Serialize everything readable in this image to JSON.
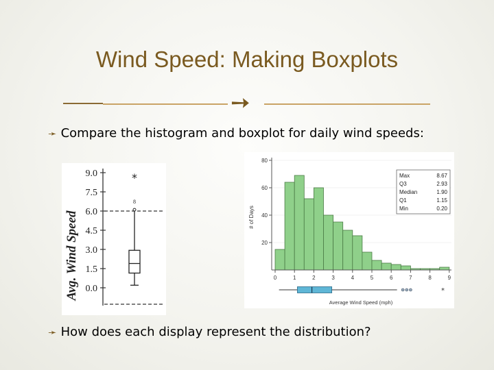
{
  "slide": {
    "title": "Wind Speed: Making Boxplots",
    "divider_icon": "bullet-arrow-icon",
    "bullets": [
      "Compare the histogram and boxplot for daily wind speeds:",
      "How does each display represent the distribution?"
    ],
    "colors": {
      "title": "#7a5a20",
      "accent_line": "#c9a365",
      "bar_fill": "#8fd08a",
      "box_fill": "#5fb6d6"
    }
  },
  "handdrawn_boxplot": {
    "ylabel": "Avg. Wind Speed",
    "ticks": [
      "9.0",
      "7.5",
      "6.0",
      "4.5",
      "3.0",
      "1.5",
      "0.0"
    ],
    "outlier_label": "8",
    "five_number": {
      "min": 0.2,
      "q1": 1.15,
      "median": 1.9,
      "q3": 2.93,
      "max": 8.67
    }
  },
  "chart_data": {
    "type": "bar",
    "title": "",
    "xlabel": "Average Wind Speed (mph)",
    "ylabel": "# of Days",
    "x_ticks": [
      "0",
      "1",
      "2",
      "3",
      "4",
      "5",
      "6",
      "7",
      "8",
      "9"
    ],
    "y_ticks": [
      "20",
      "40",
      "60",
      "80"
    ],
    "ylim": [
      0,
      80
    ],
    "xlim": [
      0,
      9
    ],
    "bin_width": 0.5,
    "bin_starts": [
      0,
      0.5,
      1,
      1.5,
      2,
      2.5,
      3,
      3.5,
      4,
      4.5,
      5,
      5.5,
      6,
      6.5,
      7,
      7.5,
      8,
      8.5
    ],
    "values": [
      15,
      64,
      69,
      52,
      60,
      40,
      35,
      29,
      25,
      13,
      7,
      5,
      4,
      3,
      1,
      1,
      1,
      2
    ],
    "summary_table": [
      {
        "label": "Max",
        "value": "8.67"
      },
      {
        "label": "Q3",
        "value": "2.93"
      },
      {
        "label": "Median",
        "value": "1.90"
      },
      {
        "label": "Q1",
        "value": "1.15"
      },
      {
        "label": "Min",
        "value": "0.20"
      }
    ],
    "boxplot": {
      "min": 0.2,
      "q1": 1.15,
      "median": 1.9,
      "q3": 2.93,
      "max": 8.67,
      "outliers_circle": [
        6.6,
        6.8,
        7.0
      ],
      "outliers_star": [
        8.67
      ]
    }
  }
}
